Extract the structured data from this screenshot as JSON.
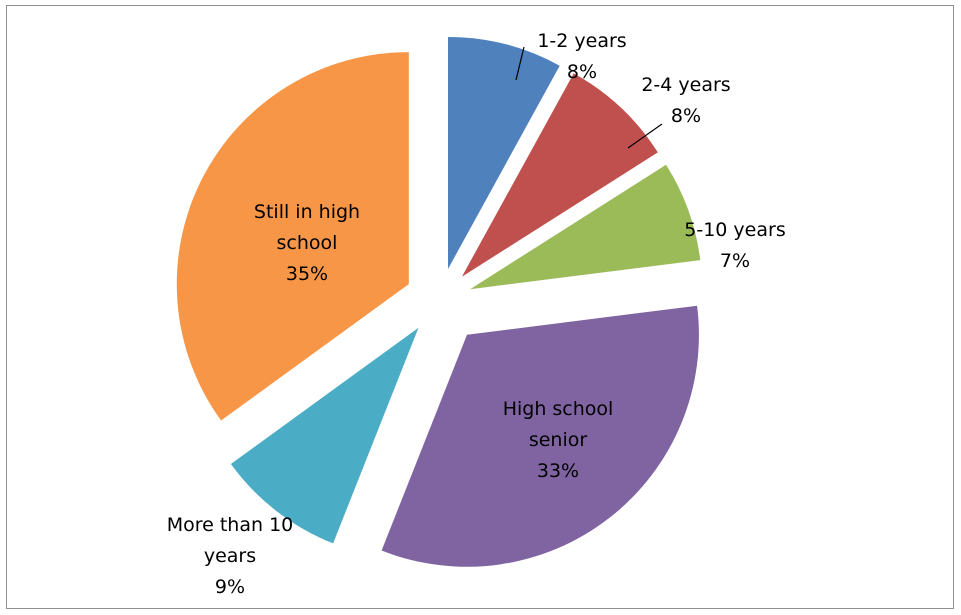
{
  "chart_data": {
    "type": "pie",
    "title": "",
    "exploded": true,
    "slices": [
      {
        "lines": [
          "1-2 years",
          "8%"
        ],
        "value": 8,
        "color": "#4f81bd"
      },
      {
        "lines": [
          "2-4 years",
          "8%"
        ],
        "value": 8,
        "color": "#c0504d"
      },
      {
        "lines": [
          "5-10 years",
          "7%"
        ],
        "value": 7,
        "color": "#9bbb59"
      },
      {
        "lines": [
          "High school",
          "senior",
          "33%"
        ],
        "value": 33,
        "color": "#8064a2"
      },
      {
        "lines": [
          "More than 10",
          "years",
          "9%"
        ],
        "value": 9,
        "color": "#4bacc6"
      },
      {
        "lines": [
          "Still in high",
          "school",
          "35%"
        ],
        "value": 35,
        "color": "#f79646"
      }
    ]
  }
}
